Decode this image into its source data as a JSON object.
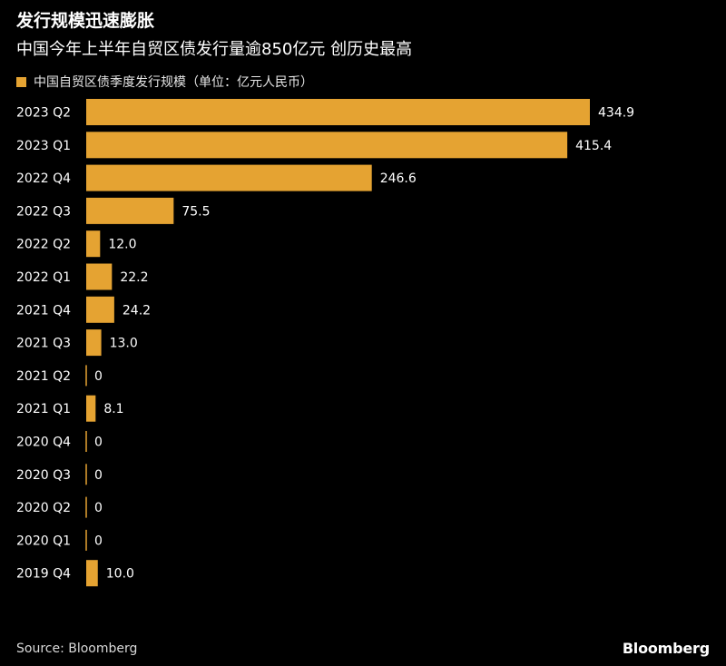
{
  "header": {
    "title": "发行规模迅速膨胀",
    "subtitle": "中国今年上半年自贸区债发行量逾850亿元 创历史最高"
  },
  "chart_data": {
    "type": "bar",
    "orientation": "horizontal",
    "categories": [
      "2023 Q2",
      "2023 Q1",
      "2022 Q4",
      "2022 Q3",
      "2022 Q2",
      "2022 Q1",
      "2021 Q4",
      "2021 Q3",
      "2021 Q2",
      "2021 Q1",
      "2020 Q4",
      "2020 Q3",
      "2020 Q2",
      "2020 Q1",
      "2019 Q4"
    ],
    "series": [
      {
        "name": "中国自贸区债季度发行规模（单位：亿元人民币）",
        "values": [
          434.9,
          415.4,
          246.6,
          75.5,
          12.0,
          22.2,
          24.2,
          13.0,
          0,
          8.1,
          0,
          0,
          0,
          0,
          10.0
        ],
        "labels": [
          "434.9",
          "415.4",
          "246.6",
          "75.5",
          "12.0",
          "22.2",
          "24.2",
          "13.0",
          "0",
          "8.1",
          "0",
          "0",
          "0",
          "0",
          "10.0"
        ]
      }
    ],
    "xlim": [
      0,
      434.9
    ],
    "grid": false,
    "legend": "top-left"
  },
  "colors": {
    "background": "#000000",
    "bar": "#E5A332",
    "text": "#ffffff",
    "zero_line": "#999999"
  },
  "footer": {
    "source": "Source: Bloomberg",
    "logo": "Bloomberg"
  }
}
